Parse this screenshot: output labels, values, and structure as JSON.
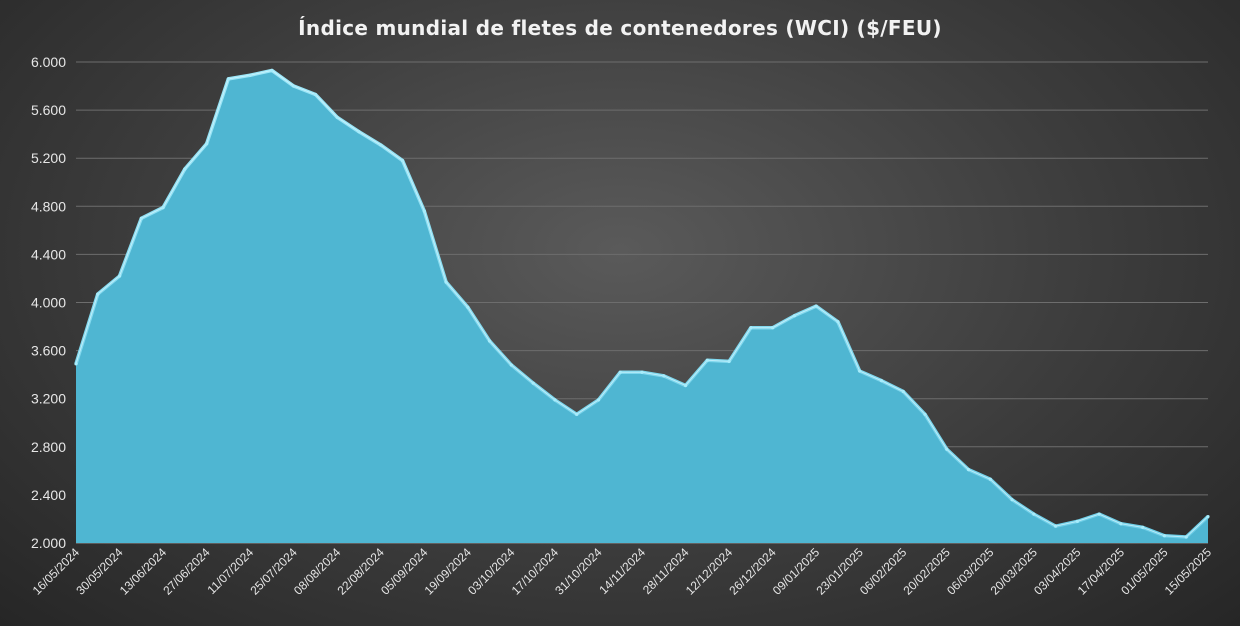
{
  "colors": {
    "area_fill": "#4fb6d2",
    "area_edge": "#86dcf1",
    "grid": "#6d6d6d",
    "text": "#e6e6e6"
  },
  "chart_data": {
    "type": "area",
    "title": "Índice mundial de fletes de contenedores (WCI) ($/FEU)",
    "xlabel": "",
    "ylabel": "",
    "ylim": [
      2000,
      6000
    ],
    "yticks": [
      "2.000",
      "2.400",
      "2.800",
      "3.200",
      "3.600",
      "4.000",
      "4.400",
      "4.800",
      "5.200",
      "5.600",
      "6.000"
    ],
    "ytick_values": [
      2000,
      2400,
      2800,
      3200,
      3600,
      4000,
      4400,
      4800,
      5200,
      5600,
      6000
    ],
    "grid": true,
    "legend": "none",
    "x": [
      "16/05/2024",
      "23/05/2024",
      "30/05/2024",
      "06/06/2024",
      "13/06/2024",
      "20/06/2024",
      "27/06/2024",
      "04/07/2024",
      "11/07/2024",
      "18/07/2024",
      "25/07/2024",
      "01/08/2024",
      "08/08/2024",
      "15/08/2024",
      "22/08/2024",
      "29/08/2024",
      "05/09/2024",
      "12/09/2024",
      "19/09/2024",
      "26/09/2024",
      "03/10/2024",
      "10/10/2024",
      "17/10/2024",
      "24/10/2024",
      "31/10/2024",
      "07/11/2024",
      "14/11/2024",
      "21/11/2024",
      "28/11/2024",
      "05/12/2024",
      "12/12/2024",
      "19/12/2024",
      "26/12/2024",
      "02/01/2025",
      "09/01/2025",
      "16/01/2025",
      "23/01/2025",
      "30/01/2025",
      "06/02/2025",
      "13/02/2025",
      "20/02/2025",
      "27/02/2025",
      "06/03/2025",
      "13/03/2025",
      "20/03/2025",
      "27/03/2025",
      "03/04/2025",
      "10/04/2025",
      "17/04/2025",
      "24/04/2025",
      "01/05/2025",
      "08/05/2025",
      "15/05/2025"
    ],
    "values": [
      3490,
      4070,
      4220,
      4700,
      4790,
      5110,
      5320,
      5860,
      5890,
      5930,
      5800,
      5730,
      5540,
      5420,
      5310,
      5180,
      4760,
      4170,
      3960,
      3680,
      3480,
      3330,
      3190,
      3070,
      3190,
      3420,
      3420,
      3390,
      3310,
      3520,
      3510,
      3790,
      3790,
      3890,
      3970,
      3840,
      3430,
      3350,
      3260,
      3070,
      2780,
      2610,
      2530,
      2360,
      2240,
      2140,
      2180,
      2240,
      2160,
      2130,
      2060,
      2050,
      2220
    ]
  }
}
